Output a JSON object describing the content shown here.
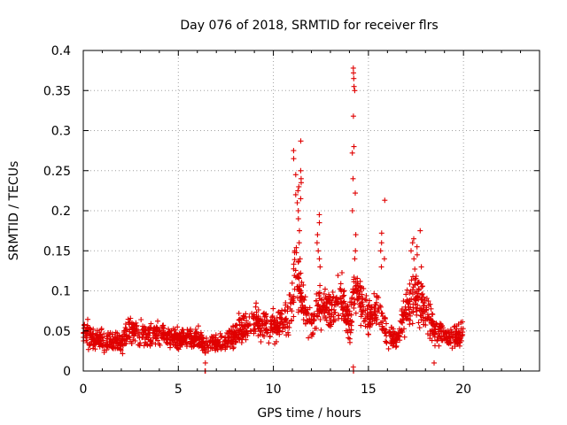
{
  "chart_data": {
    "type": "scatter",
    "title": "Day 076 of 2018, SRMTID for receiver flrs",
    "xlabel": "GPS time / hours",
    "ylabel": "SRMTID / TECUs",
    "xlim": [
      0,
      24
    ],
    "ylim": [
      0,
      0.4
    ],
    "x_ticks": [
      0,
      5,
      10,
      15,
      20
    ],
    "y_ticks": [
      0,
      0.05,
      0.1,
      0.15,
      0.2,
      0.25,
      0.3,
      0.35,
      0.4
    ],
    "x_tick_labels": [
      "0",
      "5",
      "10",
      "15",
      "20"
    ],
    "y_tick_labels": [
      "0",
      "0.05",
      "0.1",
      "0.15",
      "0.2",
      "0.25",
      "0.3",
      "0.35",
      "0.4"
    ],
    "grid": true,
    "marker": "+",
    "marker_color": "#e00000",
    "series": [
      {
        "name": "SRMTID",
        "profile_x": [
          0,
          1,
          2,
          2.5,
          3,
          4,
          5,
          6,
          6.5,
          7,
          7.5,
          8,
          9,
          9.5,
          10,
          10.8,
          11.2,
          11.5,
          12,
          12.5,
          13,
          13.5,
          14,
          14.3,
          14.6,
          15,
          15.5,
          16,
          16.5,
          17,
          17.5,
          18,
          18.5,
          19,
          19.5,
          20
        ],
        "profile_y": [
          0.048,
          0.037,
          0.036,
          0.052,
          0.048,
          0.046,
          0.04,
          0.04,
          0.03,
          0.035,
          0.04,
          0.048,
          0.062,
          0.06,
          0.055,
          0.065,
          0.12,
          0.09,
          0.055,
          0.09,
          0.07,
          0.095,
          0.06,
          0.11,
          0.09,
          0.065,
          0.08,
          0.04,
          0.04,
          0.075,
          0.1,
          0.07,
          0.05,
          0.045,
          0.04,
          0.05
        ],
        "n_points": 1700,
        "spread": 0.3,
        "spikes": [
          {
            "x_range": [
              11.05,
              11.5
            ],
            "y_values": [
              0.287,
              0.275,
              0.265,
              0.25,
              0.245,
              0.24,
              0.235,
              0.23,
              0.225,
              0.22,
              0.215,
              0.21,
              0.2,
              0.19,
              0.175,
              0.16,
              0.15,
              0.14
            ]
          },
          {
            "x_range": [
              12.2,
              12.5
            ],
            "y_values": [
              0.195,
              0.185,
              0.17,
              0.16,
              0.15,
              0.14,
              0.13
            ]
          },
          {
            "x_range": [
              14.15,
              14.35
            ],
            "y_values": [
              0.378,
              0.372,
              0.365,
              0.355,
              0.35,
              0.318,
              0.28,
              0.272,
              0.24,
              0.222,
              0.2,
              0.17,
              0.15,
              0.14
            ]
          },
          {
            "x_range": [
              15.6,
              15.9
            ],
            "y_values": [
              0.213,
              0.172,
              0.16,
              0.15,
              0.14,
              0.13
            ]
          },
          {
            "x_range": [
              17.2,
              17.8
            ],
            "y_values": [
              0.175,
              0.165,
              0.16,
              0.155,
              0.15,
              0.145,
              0.14,
              0.13
            ]
          },
          {
            "x_range": [
              6.4,
              6.45
            ],
            "y_values": [
              0,
              0,
              0.01
            ]
          },
          {
            "x_range": [
              14.18,
              14.22
            ],
            "y_values": [
              0,
              0,
              0.005
            ]
          },
          {
            "x_range": [
              18.4,
              18.5
            ],
            "y_values": [
              0.01
            ]
          }
        ]
      }
    ]
  }
}
